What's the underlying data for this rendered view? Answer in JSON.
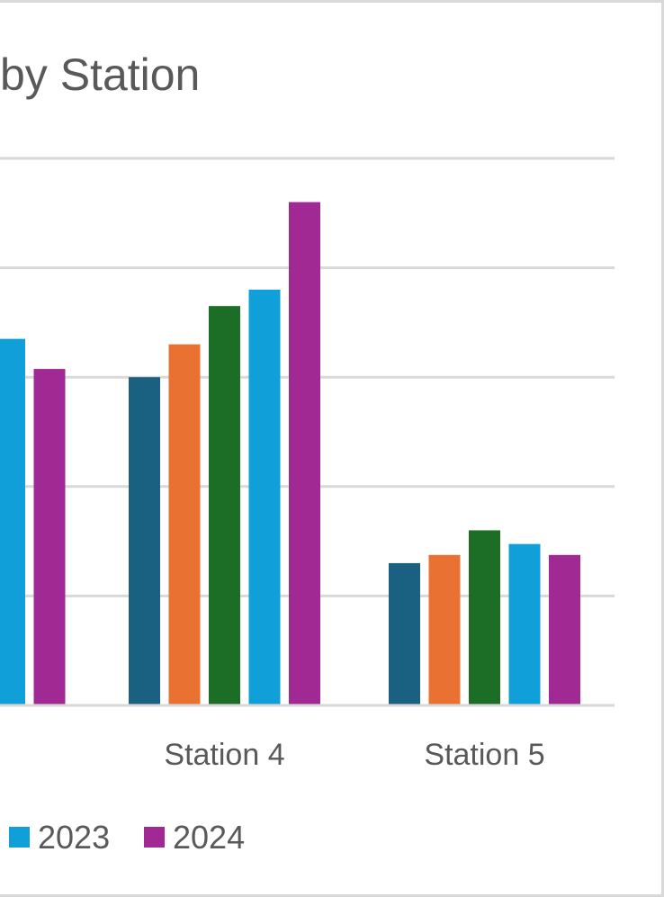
{
  "chart_data": {
    "type": "bar",
    "title": "by Station",
    "categories": [
      "n 3",
      "Station 4",
      "Station 5"
    ],
    "series": [
      {
        "name": "",
        "color": "#1a6080",
        "values": [
          null,
          60,
          26
        ]
      },
      {
        "name": "",
        "color": "#e97232",
        "values": [
          null,
          66,
          27.5
        ]
      },
      {
        "name": "",
        "color": "#1c6e27",
        "values": [
          null,
          73,
          32
        ]
      },
      {
        "name": "2023",
        "color": "#109fd9",
        "values": [
          67,
          76,
          29.5
        ]
      },
      {
        "name": "2024",
        "color": "#a02994",
        "values": [
          61.5,
          92,
          27.5
        ]
      }
    ],
    "ylim": [
      0,
      100
    ],
    "ytick_step": 20,
    "grid": true,
    "legend_position": "bottom",
    "xlabel": "",
    "ylabel": ""
  }
}
